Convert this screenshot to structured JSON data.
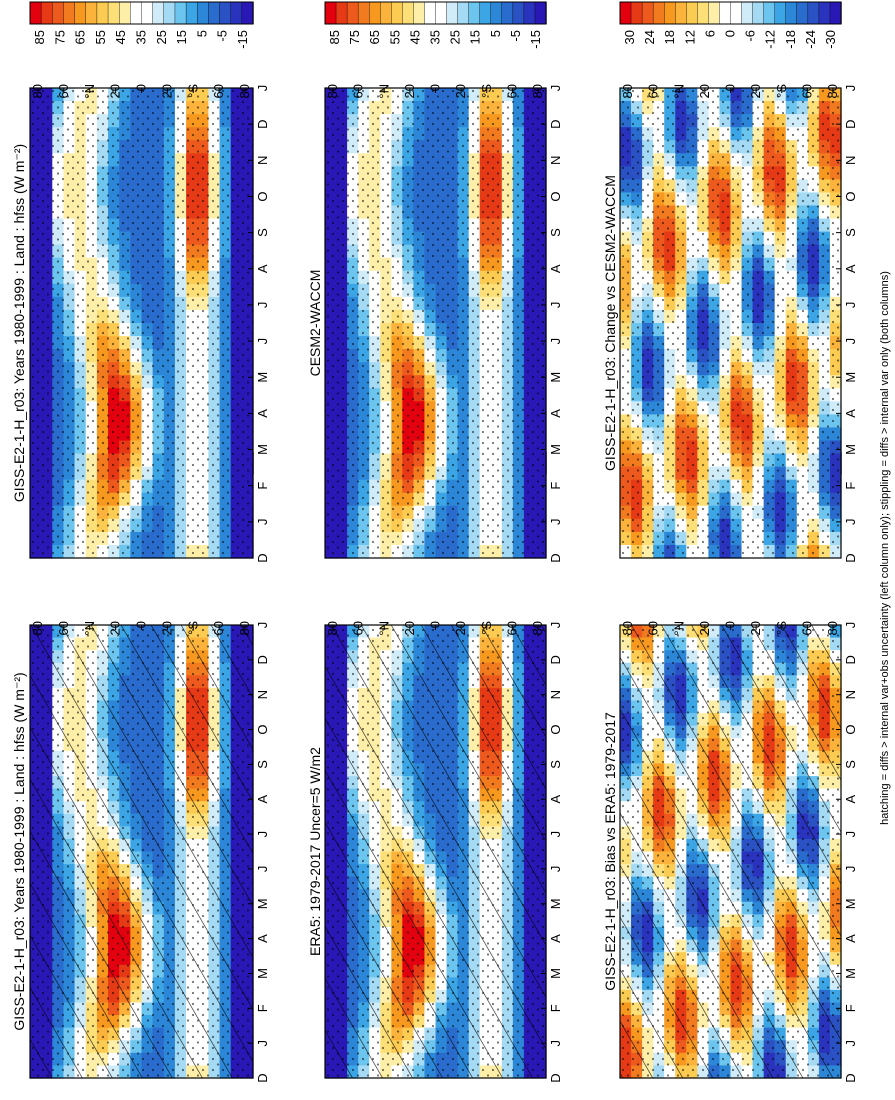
{
  "footer_note": "hatching = diffs > internal var+obs uncertainty (left column only); stippling = diffs > internal var only (both columns)",
  "colors": {
    "abs_palette": [
      "#e3000f",
      "#e63a16",
      "#ee5a1d",
      "#f27a1f",
      "#f7981f",
      "#fbb33c",
      "#fccb52",
      "#fddf77",
      "#feefa8",
      "#ffffff",
      "#ffffff",
      "#d1ecf9",
      "#a4daf4",
      "#6cc5ef",
      "#3ba5e5",
      "#2c87d8",
      "#2a6ccd",
      "#2a52c4",
      "#2a33bd",
      "#2a18b6"
    ],
    "diff_palette": [
      "#e3000f",
      "#e63a16",
      "#ee5a1d",
      "#f27a1f",
      "#f7981f",
      "#fbb33c",
      "#fccb52",
      "#fddf77",
      "#feefa8",
      "#ffffff",
      "#ffffff",
      "#d1ecf9",
      "#a4daf4",
      "#6cc5ef",
      "#3ba5e5",
      "#2c87d8",
      "#2a6ccd",
      "#2a52c4",
      "#2a33bd",
      "#2a18b6"
    ]
  },
  "chart_data": [
    {
      "type": "heatmap",
      "id": "p1",
      "title": "GISS-E2-1-H_r03: Years 1980-1999 : Land : hfss (W m⁻²)",
      "x_ticks": [
        "D",
        "J",
        "F",
        "M",
        "A",
        "M",
        "J",
        "J",
        "A",
        "S",
        "O",
        "N",
        "D",
        "J"
      ],
      "y_ticks": [
        "80",
        "60",
        "°N",
        "20",
        "0",
        "20",
        "°S",
        "60",
        "80"
      ],
      "colorbar_labels": [
        "85",
        "75",
        "65",
        "55",
        "45",
        "35",
        "25",
        "15",
        "5",
        "-5",
        "-15"
      ],
      "hatching": true,
      "stippling": true
    },
    {
      "type": "heatmap",
      "id": "p2",
      "title": "GISS-E2-1-H_r03: Years 1980-1999 : Land : hfss (W m⁻²)",
      "x_ticks": [
        "D",
        "J",
        "F",
        "M",
        "A",
        "M",
        "J",
        "J",
        "A",
        "S",
        "O",
        "N",
        "D",
        "J"
      ],
      "y_ticks": [
        "80",
        "60",
        "°N",
        "20",
        "0",
        "20",
        "°S",
        "60",
        "80"
      ],
      "colorbar_labels": [
        "85",
        "75",
        "65",
        "55",
        "45",
        "35",
        "25",
        "15",
        "5",
        "-5",
        "-15"
      ],
      "hatching": false,
      "stippling": true
    },
    {
      "type": "heatmap",
      "id": "p3",
      "title": "ERA5: 1979-2017 Uncer=5 W/m2",
      "x_ticks": [
        "D",
        "J",
        "F",
        "M",
        "A",
        "M",
        "J",
        "J",
        "A",
        "S",
        "O",
        "N",
        "D",
        "J"
      ],
      "y_ticks": [
        "80",
        "60",
        "°N",
        "20",
        "0",
        "20",
        "°S",
        "60",
        "80"
      ],
      "colorbar_labels": [
        "85",
        "75",
        "65",
        "55",
        "45",
        "35",
        "25",
        "15",
        "5",
        "-5",
        "-15"
      ],
      "hatching": true,
      "stippling": true
    },
    {
      "type": "heatmap",
      "id": "p4",
      "title": "CESM2-WACCM",
      "x_ticks": [
        "D",
        "J",
        "F",
        "M",
        "A",
        "M",
        "J",
        "J",
        "A",
        "S",
        "O",
        "N",
        "D",
        "J"
      ],
      "y_ticks": [
        "80",
        "60",
        "°N",
        "20",
        "0",
        "20",
        "°S",
        "60",
        "80"
      ],
      "colorbar_labels": [
        "85",
        "75",
        "65",
        "55",
        "45",
        "35",
        "25",
        "15",
        "5",
        "-5",
        "-15"
      ],
      "hatching": false,
      "stippling": true
    },
    {
      "type": "heatmap",
      "id": "p5",
      "title": "GISS-E2-1-H_r03: Bias vs ERA5: 1979-2017",
      "x_ticks": [
        "D",
        "J",
        "F",
        "M",
        "A",
        "M",
        "J",
        "J",
        "A",
        "S",
        "O",
        "N",
        "D",
        "J"
      ],
      "y_ticks": [
        "80",
        "60",
        "°N",
        "20",
        "0",
        "20",
        "°S",
        "60",
        "80"
      ],
      "colorbar_labels": [
        "30",
        "24",
        "18",
        "12",
        "6",
        "0",
        "-6",
        "-12",
        "-18",
        "-24",
        "-30"
      ],
      "hatching": true,
      "stippling": true
    },
    {
      "type": "heatmap",
      "id": "p6",
      "title": "GISS-E2-1-H_r03: Change vs CESM2-WACCM",
      "x_ticks": [
        "D",
        "J",
        "F",
        "M",
        "A",
        "M",
        "J",
        "J",
        "A",
        "S",
        "O",
        "N",
        "D",
        "J"
      ],
      "y_ticks": [
        "80",
        "60",
        "°N",
        "20",
        "0",
        "20",
        "°S",
        "60",
        "80"
      ],
      "colorbar_labels": [
        "30",
        "24",
        "18",
        "12",
        "6",
        "0",
        "-6",
        "-12",
        "-18",
        "-24",
        "-30"
      ],
      "hatching": false,
      "stippling": true
    }
  ]
}
